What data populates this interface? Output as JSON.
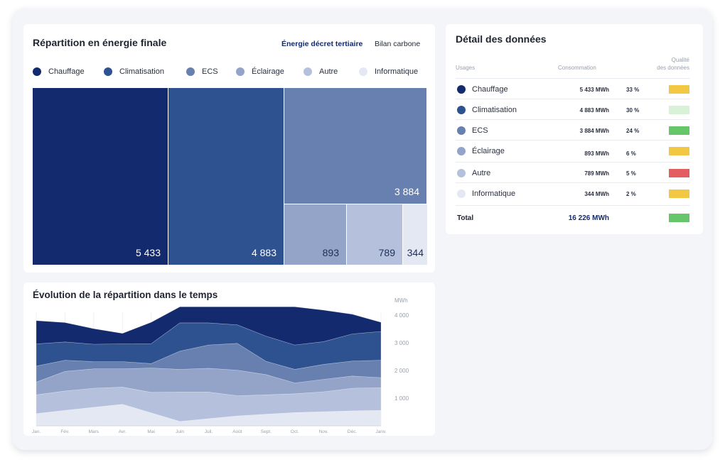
{
  "treemap_card": {
    "title": "Répartition en énergie finale",
    "toggle_active": "Énergie décret tertiaire",
    "toggle_other": "Bilan carbone"
  },
  "usages": [
    {
      "label": "Chauffage",
      "value": 5433,
      "value_label": "5 433",
      "color": "#142a6e"
    },
    {
      "label": "Climatisation",
      "value": 4883,
      "value_label": "4 883",
      "color": "#2e5290"
    },
    {
      "label": "ECS",
      "value": 3884,
      "value_label": "3 884",
      "color": "#6880b0"
    },
    {
      "label": "Éclairage",
      "value": 893,
      "value_label": "893",
      "color": "#93a4c8"
    },
    {
      "label": "Autre",
      "value": 789,
      "value_label": "789",
      "color": "#b5c1dc"
    },
    {
      "label": "Informatique",
      "value": 344,
      "value_label": "344",
      "color": "#e4e8f2"
    }
  ],
  "table": {
    "title": "Détail des données",
    "headers": {
      "usage": "Usages",
      "conso": "Consommation",
      "quality_line1": "Qualité",
      "quality_line2": "des données"
    },
    "rows": [
      {
        "label": "Chauffage",
        "conso": "5 433 MWh",
        "pct": "33 %",
        "dot": "#142a6e",
        "quality": "#f2c744"
      },
      {
        "label": "Climatisation",
        "conso": "4 883 MWh",
        "pct": "30 %",
        "dot": "#2e5290",
        "quality": "#d8f2d8"
      },
      {
        "label": "ECS",
        "conso": "3 884 MWh",
        "pct": "24 %",
        "dot": "#6880b0",
        "quality": "#66c76a"
      },
      {
        "label": "Éclairage",
        "conso": "893 MWh",
        "pct": "6 %",
        "dot": "#93a4c8",
        "quality": "#f2c744"
      },
      {
        "label": "Autre",
        "conso": "789 MWh",
        "pct": "5 %",
        "dot": "#b5c1dc",
        "quality": "#e35e60"
      },
      {
        "label": "Informatique",
        "conso": "344 MWh",
        "pct": "2 %",
        "dot": "#e4e8f2",
        "quality": "#f2c744"
      }
    ],
    "total": {
      "label": "Total",
      "value": "16 226 MWh",
      "quality": "#66c76a"
    }
  },
  "area_card": {
    "title": "Évolution de la répartition dans le temps"
  },
  "chart_data": {
    "type": "area",
    "stacked": true,
    "title": "Évolution de la répartition dans le temps",
    "ylabel": "MWh",
    "ylim": [
      0,
      4000
    ],
    "yticks": [
      1000,
      2000,
      3000,
      4000
    ],
    "ytick_labels": [
      "1 000",
      "2 000",
      "3 000",
      "4 000"
    ],
    "grid": true,
    "categories": [
      "Jan.",
      "Fév.",
      "Mars",
      "Avr.",
      "Mai",
      "Juin",
      "Juil.",
      "Août",
      "Sept.",
      "Oct.",
      "Nov.",
      "Déc.",
      "Janv."
    ],
    "series": [
      {
        "name": "Informatique",
        "color": "#e4e8f2",
        "values": [
          440,
          560,
          670,
          780,
          470,
          160,
          260,
          360,
          420,
          480,
          510,
          540,
          560
        ]
      },
      {
        "name": "Autre",
        "color": "#b5c1dc",
        "values": [
          680,
          700,
          690,
          620,
          740,
          1060,
          960,
          730,
          700,
          680,
          720,
          820,
          820
        ]
      },
      {
        "name": "Éclairage",
        "color": "#93a4c8",
        "values": [
          460,
          710,
          700,
          660,
          880,
          820,
          860,
          920,
          730,
          390,
          450,
          440,
          360
        ]
      },
      {
        "name": "ECS",
        "color": "#6880b0",
        "values": [
          580,
          400,
          260,
          260,
          160,
          660,
          840,
          970,
          480,
          490,
          540,
          540,
          630
        ]
      },
      {
        "name": "Climatisation",
        "color": "#2e5290",
        "values": [
          800,
          660,
          630,
          640,
          720,
          1020,
          800,
          670,
          910,
          880,
          820,
          980,
          1040
        ]
      },
      {
        "name": "Chauffage",
        "color": "#142a6e",
        "values": [
          840,
          700,
          560,
          380,
          770,
          580,
          580,
          650,
          1060,
          1380,
          1140,
          710,
          330
        ]
      }
    ]
  }
}
